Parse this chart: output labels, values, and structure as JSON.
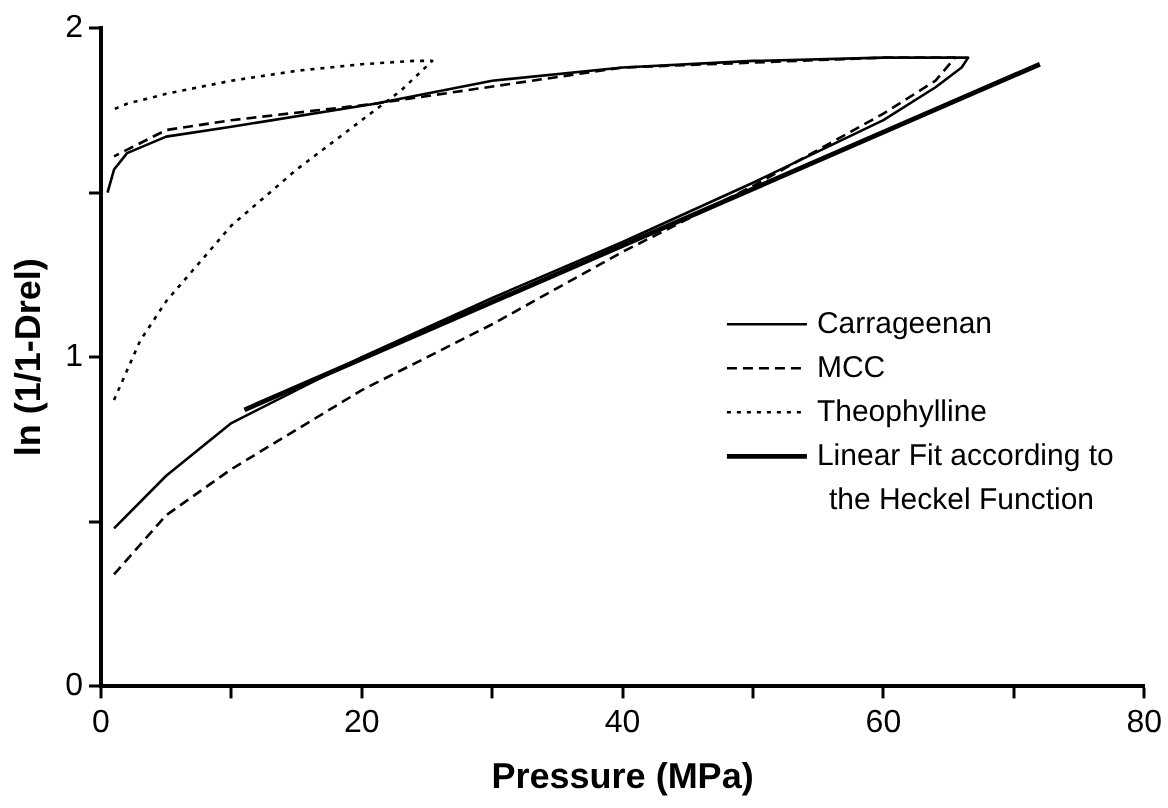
{
  "chart_data": {
    "type": "line",
    "xlabel": "Pressure (MPa)",
    "ylabel": "ln (1/1-Drel)",
    "xlim": [
      0,
      80
    ],
    "ylim": [
      0,
      2
    ],
    "xticks": [
      0,
      {
        "value": 10,
        "label": null
      },
      20,
      {
        "value": 30,
        "label": null
      },
      40,
      {
        "value": 50,
        "label": null
      },
      60,
      {
        "value": 70,
        "label": null
      },
      80
    ],
    "yticks": [
      0,
      {
        "value": 0.5,
        "label": null
      },
      1,
      {
        "value": 1.5,
        "label": null
      },
      2
    ],
    "grid": false,
    "legend": "right",
    "marker": "none",
    "series": [
      {
        "name": "Carrageenan",
        "color": "#000000",
        "line_style": "solid",
        "x": [
          1,
          5,
          10,
          20,
          30,
          40,
          50,
          60,
          64,
          66,
          66.5,
          65,
          60,
          50,
          40,
          30,
          21,
          10,
          5,
          2,
          1,
          0.5
        ],
        "values": [
          0.48,
          0.64,
          0.8,
          1.0,
          1.18,
          1.35,
          1.53,
          1.72,
          1.82,
          1.88,
          1.91,
          1.91,
          1.91,
          1.9,
          1.88,
          1.84,
          1.77,
          1.7,
          1.67,
          1.62,
          1.57,
          1.5
        ]
      },
      {
        "name": "MCC",
        "color": "#000000",
        "line_style": "dashed",
        "x": [
          1,
          5,
          10,
          20,
          30,
          40,
          50,
          60,
          64,
          65.5,
          64,
          60,
          40,
          21,
          10,
          5,
          1
        ],
        "values": [
          0.34,
          0.52,
          0.66,
          0.9,
          1.1,
          1.32,
          1.52,
          1.74,
          1.84,
          1.91,
          1.91,
          1.91,
          1.88,
          1.77,
          1.72,
          1.69,
          1.61
        ]
      },
      {
        "name": "Theophylline",
        "color": "#000000",
        "line_style": "dotted",
        "x": [
          1,
          3,
          5,
          10,
          15,
          20,
          23,
          25.4,
          24,
          20,
          15,
          10,
          5,
          2,
          0.8
        ],
        "values": [
          0.87,
          1.05,
          1.17,
          1.4,
          1.57,
          1.72,
          1.81,
          1.9,
          1.9,
          1.89,
          1.87,
          1.84,
          1.8,
          1.77,
          1.75
        ]
      },
      {
        "name": "Linear Fit according to the Heckel Function",
        "color": "#000000",
        "line_style": "solid",
        "x": [
          11,
          72
        ],
        "values": [
          0.84,
          1.89
        ]
      }
    ]
  }
}
